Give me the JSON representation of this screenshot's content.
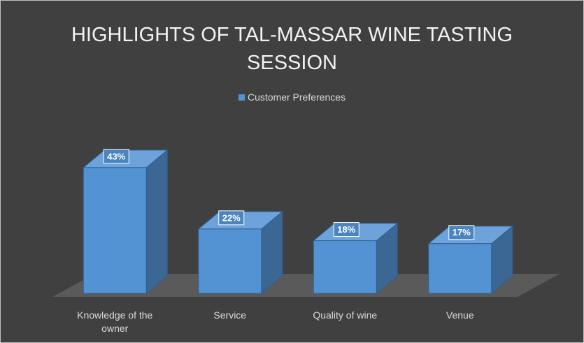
{
  "chart_data": {
    "type": "bar3d",
    "title": "HIGHLIGHTS OF TAL-MASSAR WINE TASTING SESSION",
    "categories": [
      "Knowledge of the owner",
      "Service",
      "Quality of wine",
      "Venue"
    ],
    "series": [
      {
        "name": "Customer Preferences",
        "color": "#5393d3",
        "values": [
          43,
          22,
          18,
          17
        ],
        "value_labels": [
          "43%",
          "22%",
          "18%",
          "17%"
        ]
      }
    ],
    "legend": "top"
  }
}
